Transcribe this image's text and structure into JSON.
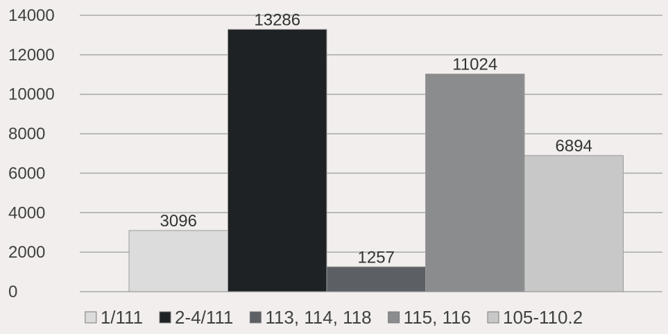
{
  "chart_data": {
    "type": "bar",
    "title": "",
    "xlabel": "",
    "ylabel": "",
    "ylim": [
      0,
      14000
    ],
    "yticks": [
      0,
      2000,
      4000,
      6000,
      8000,
      10000,
      12000,
      14000
    ],
    "grid": true,
    "legend_position": "bottom",
    "data_labels": true,
    "series": [
      {
        "name": "1/111",
        "value": 3096,
        "color": "#dcdcdc"
      },
      {
        "name": "2-4/111",
        "value": 13286,
        "color": "#1f2224"
      },
      {
        "name": "113, 114, 118",
        "value": 1257,
        "color": "#5c6064"
      },
      {
        "name": "115, 116",
        "value": 11024,
        "color": "#8a8c8d"
      },
      {
        "name": "105-110.2",
        "value": 6894,
        "color": "#c8c8c8"
      }
    ]
  }
}
